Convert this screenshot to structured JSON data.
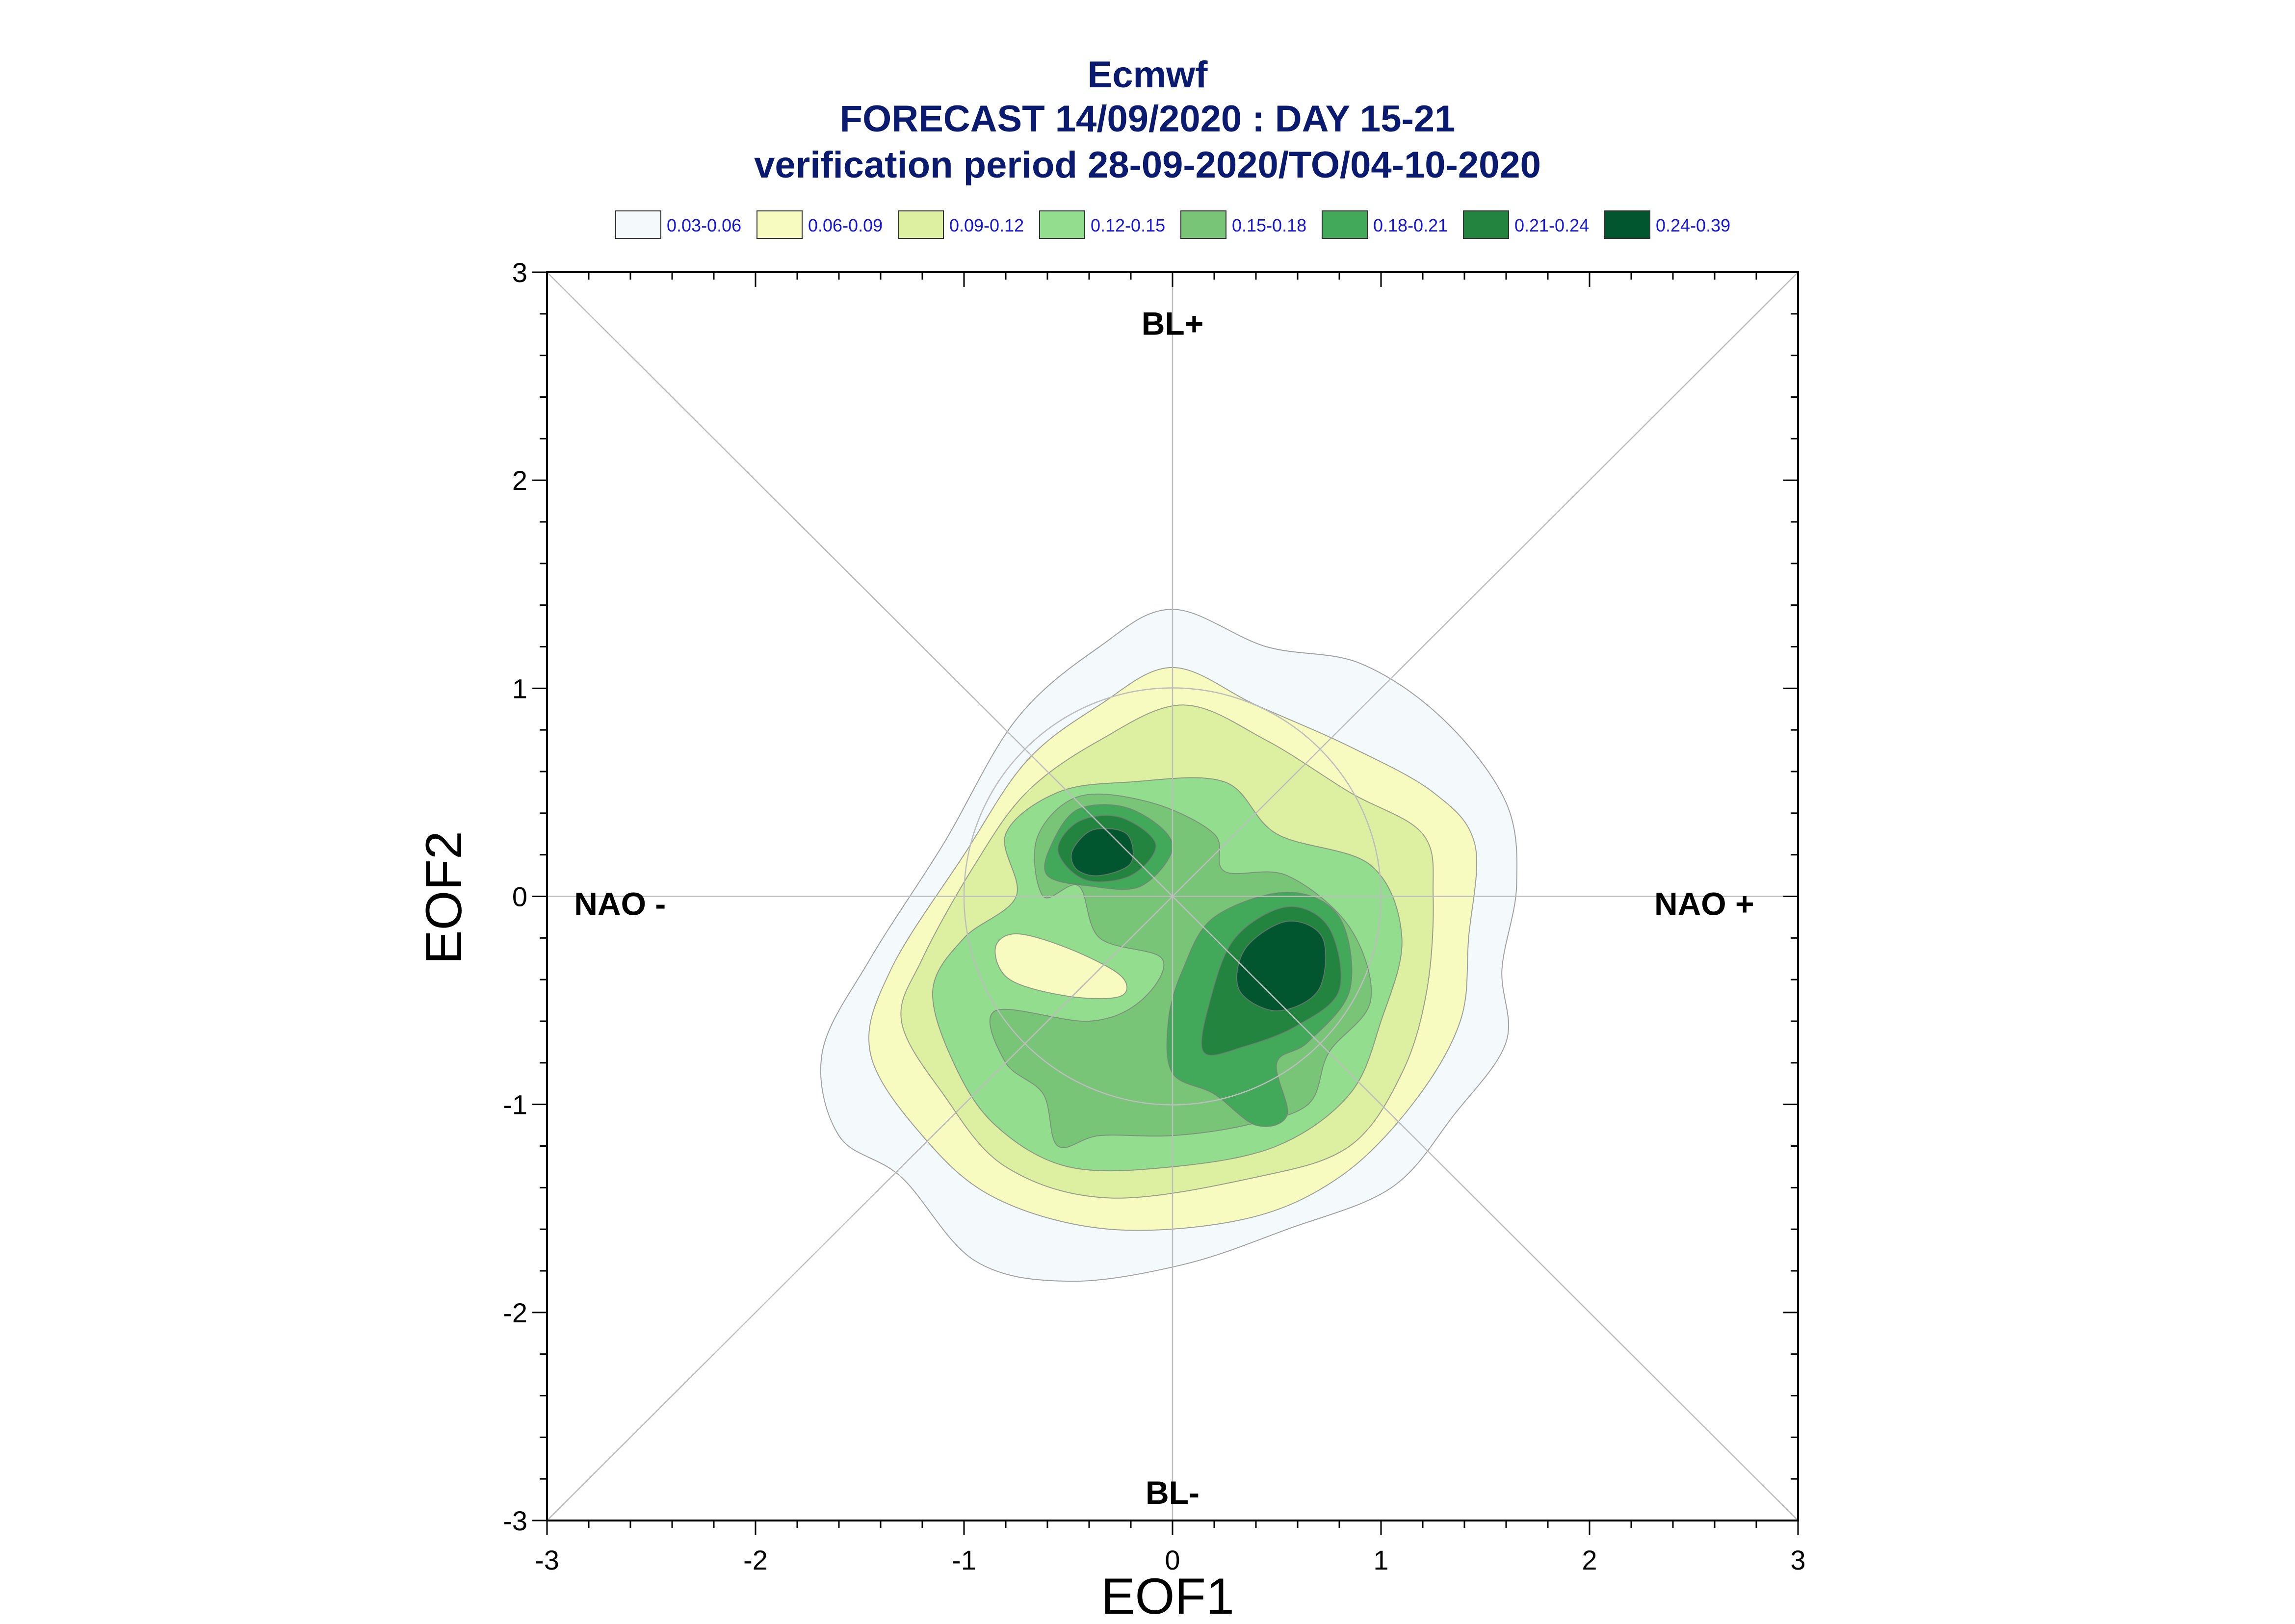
{
  "chart_data": {
    "type": "contour",
    "title": [
      "Ecmwf",
      "FORECAST 14/09/2020 : DAY 15-21",
      "verification period 28-09-2020/TO/04-10-2020"
    ],
    "xlabel": "EOF1",
    "ylabel": "EOF2",
    "xlim": [
      -3,
      3
    ],
    "ylim": [
      -3,
      3
    ],
    "x_ticks": [
      "-3",
      "-2",
      "-1",
      "0",
      "1",
      "2",
      "3"
    ],
    "y_ticks": [
      "3",
      "2",
      "1",
      "0",
      "-1",
      "-2",
      "-3"
    ],
    "grid_circle_radius": 1,
    "legend_position": "top",
    "legend": [
      {
        "label": "0.03-0.06",
        "color": "#f4f9fc"
      },
      {
        "label": "0.06-0.09",
        "color": "#f8fbc0"
      },
      {
        "label": "0.09-0.12",
        "color": "#ddefa0"
      },
      {
        "label": "0.12-0.15",
        "color": "#93de8e"
      },
      {
        "label": "0.15-0.18",
        "color": "#78c577"
      },
      {
        "label": "0.18-0.21",
        "color": "#42a95a"
      },
      {
        "label": "0.21-0.24",
        "color": "#238440"
      },
      {
        "label": "0.24-0.39",
        "color": "#01552f"
      }
    ],
    "annotations": [
      {
        "text": "BL+",
        "x": 0,
        "y": 2.7
      },
      {
        "text": "BL-",
        "x": 0,
        "y": -2.92
      },
      {
        "text": "NAO -",
        "x": -2.65,
        "y": -0.09
      },
      {
        "text": "NAO +",
        "x": 2.55,
        "y": -0.09
      }
    ],
    "density_peaks": [
      {
        "x": -0.33,
        "y": 0.2,
        "level": "0.24-0.39"
      },
      {
        "x": 0.55,
        "y": -0.35,
        "level": "0.24-0.39"
      }
    ],
    "contours": [
      {
        "level": "0.03-0.06",
        "points": [
          [
            0,
            1.38
          ],
          [
            0.45,
            1.2
          ],
          [
            0.9,
            1.12
          ],
          [
            1.3,
            0.85
          ],
          [
            1.6,
            0.45
          ],
          [
            1.65,
            0.05
          ],
          [
            1.58,
            -0.35
          ],
          [
            1.6,
            -0.7
          ],
          [
            1.35,
            -1.05
          ],
          [
            1.05,
            -1.4
          ],
          [
            0.55,
            -1.6
          ],
          [
            0.05,
            -1.77
          ],
          [
            -0.5,
            -1.85
          ],
          [
            -0.95,
            -1.75
          ],
          [
            -1.3,
            -1.35
          ],
          [
            -1.6,
            -1.15
          ],
          [
            -1.68,
            -0.75
          ],
          [
            -1.45,
            -0.3
          ],
          [
            -1.1,
            0.25
          ],
          [
            -0.75,
            0.85
          ],
          [
            -0.35,
            1.2
          ]
        ]
      },
      {
        "level": "0.06-0.09",
        "points": [
          [
            0,
            1.1
          ],
          [
            0.4,
            0.92
          ],
          [
            0.85,
            0.72
          ],
          [
            1.25,
            0.5
          ],
          [
            1.45,
            0.25
          ],
          [
            1.42,
            -0.2
          ],
          [
            1.38,
            -0.6
          ],
          [
            1.15,
            -1.0
          ],
          [
            0.8,
            -1.35
          ],
          [
            0.35,
            -1.55
          ],
          [
            -0.3,
            -1.6
          ],
          [
            -0.85,
            -1.45
          ],
          [
            -1.2,
            -1.15
          ],
          [
            -1.45,
            -0.75
          ],
          [
            -1.35,
            -0.35
          ],
          [
            -1.0,
            0.2
          ],
          [
            -0.7,
            0.65
          ],
          [
            -0.35,
            0.92
          ]
        ]
      },
      {
        "level": "0.09-0.12",
        "points": [
          [
            0.05,
            0.92
          ],
          [
            0.45,
            0.75
          ],
          [
            0.85,
            0.5
          ],
          [
            1.2,
            0.3
          ],
          [
            1.25,
            0.0
          ],
          [
            1.22,
            -0.45
          ],
          [
            1.1,
            -0.85
          ],
          [
            0.85,
            -1.2
          ],
          [
            0.4,
            -1.35
          ],
          [
            -0.3,
            -1.45
          ],
          [
            -0.8,
            -1.3
          ],
          [
            -1.1,
            -0.95
          ],
          [
            -1.3,
            -0.6
          ],
          [
            -1.2,
            -0.3
          ],
          [
            -0.95,
            0.15
          ],
          [
            -0.7,
            0.5
          ],
          [
            -0.35,
            0.75
          ]
        ]
      },
      {
        "level": "0.12-0.15",
        "points": [
          [
            -0.2,
            0.55
          ],
          [
            0.25,
            0.55
          ],
          [
            0.5,
            0.3
          ],
          [
            0.95,
            0.15
          ],
          [
            1.1,
            -0.2
          ],
          [
            1.0,
            -0.6
          ],
          [
            0.85,
            -0.95
          ],
          [
            0.5,
            -1.2
          ],
          [
            0.0,
            -1.3
          ],
          [
            -0.5,
            -1.3
          ],
          [
            -0.85,
            -1.1
          ],
          [
            -1.05,
            -0.8
          ],
          [
            -1.15,
            -0.45
          ],
          [
            -1.0,
            -0.2
          ],
          [
            -0.75,
            0.0
          ],
          [
            -0.8,
            0.3
          ],
          [
            -0.55,
            0.5
          ]
        ]
      },
      {
        "level": "0.15-0.18",
        "points": [
          [
            -0.65,
            0.28
          ],
          [
            -0.45,
            0.48
          ],
          [
            -0.1,
            0.45
          ],
          [
            0.2,
            0.3
          ],
          [
            0.25,
            0.12
          ],
          [
            0.55,
            0.1
          ],
          [
            0.85,
            -0.15
          ],
          [
            0.95,
            -0.5
          ],
          [
            0.75,
            -0.75
          ],
          [
            0.65,
            -1.0
          ],
          [
            0.35,
            -1.1
          ],
          [
            0.0,
            -1.15
          ],
          [
            -0.35,
            -1.15
          ],
          [
            -0.55,
            -1.2
          ],
          [
            -0.62,
            -0.95
          ],
          [
            -0.8,
            -0.8
          ],
          [
            -0.85,
            -0.55
          ],
          [
            -0.4,
            -0.6
          ],
          [
            -0.15,
            -0.5
          ],
          [
            -0.05,
            -0.3
          ],
          [
            -0.35,
            -0.2
          ],
          [
            -0.45,
            0.05
          ],
          [
            -0.62,
            0.0
          ]
        ]
      },
      {
        "level": "0.18-0.21",
        "points": [
          [
            -0.58,
            0.25
          ],
          [
            -0.45,
            0.42
          ],
          [
            -0.2,
            0.42
          ],
          [
            0.0,
            0.25
          ],
          [
            -0.15,
            0.05
          ],
          [
            -0.4,
            0.05
          ],
          [
            -0.6,
            0.1
          ]
        ]
      },
      {
        "level": "0.18-0.21",
        "points": [
          [
            0.2,
            -0.1
          ],
          [
            0.55,
            0.02
          ],
          [
            0.8,
            -0.1
          ],
          [
            0.85,
            -0.45
          ],
          [
            0.65,
            -0.7
          ],
          [
            0.5,
            -0.8
          ],
          [
            0.55,
            -1.05
          ],
          [
            0.4,
            -1.1
          ],
          [
            0.2,
            -0.95
          ],
          [
            0.0,
            -0.85
          ],
          [
            -0.02,
            -0.6
          ],
          [
            0.05,
            -0.35
          ]
        ]
      },
      {
        "level": "0.21-0.24",
        "points": [
          [
            -0.55,
            0.22
          ],
          [
            -0.45,
            0.36
          ],
          [
            -0.25,
            0.38
          ],
          [
            -0.08,
            0.25
          ],
          [
            -0.2,
            0.1
          ],
          [
            -0.42,
            0.08
          ]
        ]
      },
      {
        "level": "0.21-0.24",
        "points": [
          [
            0.3,
            -0.2
          ],
          [
            0.55,
            -0.05
          ],
          [
            0.75,
            -0.15
          ],
          [
            0.8,
            -0.45
          ],
          [
            0.6,
            -0.62
          ],
          [
            0.35,
            -0.72
          ],
          [
            0.15,
            -0.75
          ],
          [
            0.18,
            -0.5
          ]
        ]
      },
      {
        "level": "0.24-0.39",
        "points": [
          [
            -0.48,
            0.22
          ],
          [
            -0.38,
            0.32
          ],
          [
            -0.22,
            0.3
          ],
          [
            -0.2,
            0.16
          ],
          [
            -0.35,
            0.1
          ],
          [
            -0.46,
            0.13
          ]
        ]
      },
      {
        "level": "0.24-0.39",
        "points": [
          [
            0.35,
            -0.25
          ],
          [
            0.55,
            -0.12
          ],
          [
            0.72,
            -0.2
          ],
          [
            0.7,
            -0.45
          ],
          [
            0.5,
            -0.55
          ],
          [
            0.32,
            -0.45
          ]
        ]
      },
      {
        "level": "0.06-0.09",
        "points": [
          [
            -0.75,
            -0.18
          ],
          [
            -0.5,
            -0.25
          ],
          [
            -0.25,
            -0.38
          ],
          [
            -0.25,
            -0.48
          ],
          [
            -0.5,
            -0.48
          ],
          [
            -0.78,
            -0.4
          ],
          [
            -0.85,
            -0.25
          ]
        ]
      }
    ]
  }
}
